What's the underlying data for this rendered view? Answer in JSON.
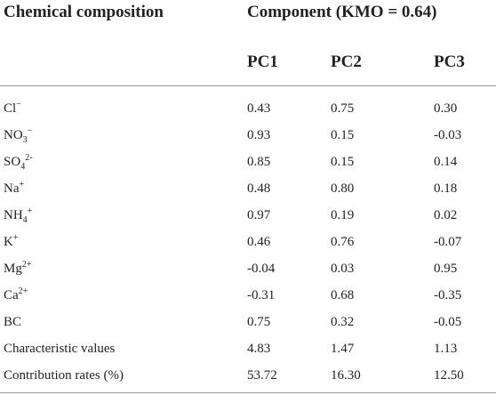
{
  "table": {
    "header_left": "Chemical composition",
    "header_group": "Component (KMO = 0.64)",
    "columns": [
      "PC1",
      "PC2",
      "PC3"
    ],
    "rows": [
      {
        "label_base": "Cl",
        "label_sub": "",
        "label_sup": "−",
        "values": [
          "0.43",
          "0.75",
          "0.30"
        ]
      },
      {
        "label_base": "NO",
        "label_sub": "3",
        "label_sup": "−",
        "values": [
          "0.93",
          "0.15",
          "-0.03"
        ]
      },
      {
        "label_base": "SO",
        "label_sub": "4",
        "label_sup": "2-",
        "values": [
          "0.85",
          "0.15",
          "0.14"
        ]
      },
      {
        "label_base": "Na",
        "label_sub": "",
        "label_sup": "+",
        "values": [
          "0.48",
          "0.80",
          "0.18"
        ]
      },
      {
        "label_base": "NH",
        "label_sub": "4",
        "label_sup": "+",
        "values": [
          "0.97",
          "0.19",
          "0.02"
        ]
      },
      {
        "label_base": "K",
        "label_sub": "",
        "label_sup": "+",
        "values": [
          "0.46",
          "0.76",
          "-0.07"
        ]
      },
      {
        "label_base": "Mg",
        "label_sub": "",
        "label_sup": "2+",
        "values": [
          "-0.04",
          "0.03",
          "0.95"
        ]
      },
      {
        "label_base": "Ca",
        "label_sub": "",
        "label_sup": "2+",
        "values": [
          "-0.31",
          "0.68",
          "-0.35"
        ]
      },
      {
        "label_base": "BC",
        "label_sub": "",
        "label_sup": "",
        "values": [
          "0.75",
          "0.32",
          "-0.05"
        ]
      },
      {
        "label_base": "Characteristic values",
        "label_sub": "",
        "label_sup": "",
        "values": [
          "4.83",
          "1.47",
          "1.13"
        ]
      },
      {
        "label_base": "Contribution rates (%)",
        "label_sub": "",
        "label_sup": "",
        "values": [
          "53.72",
          "16.30",
          "12.50"
        ]
      }
    ]
  }
}
